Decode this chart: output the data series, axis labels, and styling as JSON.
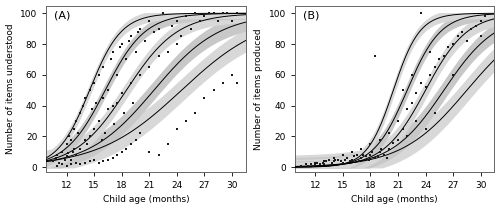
{
  "panel_A": {
    "label": "(A)",
    "ylabel": "Number of items understood",
    "xlabel": "Child age (months)",
    "yticks": [
      0,
      20,
      40,
      60,
      80,
      100
    ],
    "xticks": [
      12,
      15,
      18,
      21,
      24,
      27,
      30
    ],
    "xlim": [
      9.8,
      31.5
    ],
    "ylim": [
      -3,
      105
    ],
    "curve_params": [
      {
        "L": 100,
        "k": 0.22,
        "x0": 24.5
      },
      {
        "L": 100,
        "k": 0.28,
        "x0": 21.5
      },
      {
        "L": 100,
        "k": 0.36,
        "x0": 18.5
      },
      {
        "L": 100,
        "k": 0.46,
        "x0": 16.2
      },
      {
        "L": 100,
        "k": 0.58,
        "x0": 14.5
      }
    ],
    "ci_half": [
      7.0,
      5.5,
      4.5,
      3.5,
      3.0
    ],
    "scatter_x": [
      10.5,
      10.8,
      11.0,
      11.2,
      11.5,
      11.8,
      12.0,
      12.0,
      12.2,
      12.3,
      12.5,
      12.5,
      12.7,
      12.8,
      12.8,
      13.0,
      13.0,
      13.2,
      13.5,
      13.5,
      13.8,
      14.0,
      14.0,
      14.2,
      14.5,
      14.5,
      14.8,
      15.0,
      15.0,
      15.2,
      15.5,
      15.5,
      15.8,
      16.0,
      16.0,
      16.2,
      16.5,
      16.5,
      16.8,
      17.0,
      17.0,
      17.2,
      17.5,
      17.5,
      17.8,
      18.0,
      18.0,
      18.2,
      18.5,
      18.8,
      19.0,
      19.0,
      19.2,
      19.5,
      19.8,
      20.0,
      20.0,
      20.5,
      21.0,
      21.0,
      21.5,
      22.0,
      22.0,
      22.5,
      23.0,
      23.5,
      24.0,
      24.0,
      24.5,
      25.0,
      25.5,
      26.0,
      26.5,
      27.0,
      27.5,
      28.0,
      28.5,
      29.0,
      29.5,
      30.0,
      30.5
    ],
    "scatter_y": [
      4,
      6,
      8,
      3,
      10,
      5,
      7,
      15,
      9,
      20,
      5,
      18,
      10,
      25,
      12,
      8,
      30,
      22,
      35,
      12,
      40,
      18,
      45,
      15,
      20,
      50,
      38,
      25,
      55,
      42,
      30,
      60,
      18,
      45,
      65,
      22,
      50,
      38,
      70,
      40,
      75,
      28,
      60,
      42,
      78,
      48,
      80,
      35,
      70,
      82,
      55,
      85,
      42,
      75,
      88,
      60,
      90,
      82,
      65,
      95,
      88,
      72,
      90,
      100,
      75,
      92,
      80,
      95,
      85,
      98,
      90,
      100,
      95,
      98,
      100,
      100,
      95,
      100,
      100,
      95,
      100
    ],
    "scatter2_x": [
      11.0,
      11.5,
      12.0,
      12.5,
      13.0,
      13.5,
      14.0,
      14.5,
      15.0,
      15.5,
      16.0,
      16.5,
      17.0,
      17.5,
      18.0,
      18.5,
      19.0,
      19.5,
      20.0,
      21.0,
      22.0,
      23.0,
      24.0,
      25.0,
      26.0,
      27.0,
      28.0,
      29.0,
      30.0,
      30.5
    ],
    "scatter2_y": [
      1,
      2,
      1,
      2,
      3,
      2,
      3,
      4,
      5,
      3,
      4,
      5,
      6,
      8,
      10,
      12,
      15,
      18,
      22,
      10,
      8,
      15,
      25,
      30,
      35,
      45,
      50,
      55,
      60,
      55
    ]
  },
  "panel_B": {
    "label": "(B)",
    "ylabel": "Number of items produced",
    "xlabel": "Child age (months)",
    "yticks": [
      0,
      20,
      40,
      60,
      80,
      100
    ],
    "xticks": [
      12,
      15,
      18,
      21,
      24,
      27,
      30
    ],
    "xlim": [
      9.8,
      31.5
    ],
    "ylim": [
      -3,
      105
    ],
    "curve_params": [
      {
        "L": 100,
        "k": 0.28,
        "x0": 28.5
      },
      {
        "L": 100,
        "k": 0.35,
        "x0": 26.0
      },
      {
        "L": 100,
        "k": 0.44,
        "x0": 24.0
      },
      {
        "L": 100,
        "k": 0.55,
        "x0": 22.0
      },
      {
        "L": 100,
        "k": 0.7,
        "x0": 20.5
      }
    ],
    "ci_half": [
      7.0,
      5.5,
      4.5,
      3.5,
      3.0
    ],
    "scatter_x": [
      10.5,
      11.0,
      11.2,
      11.5,
      11.8,
      12.0,
      12.0,
      12.2,
      12.5,
      12.8,
      13.0,
      13.0,
      13.2,
      13.5,
      13.8,
      14.0,
      14.0,
      14.2,
      14.5,
      14.8,
      15.0,
      15.0,
      15.2,
      15.5,
      15.8,
      16.0,
      16.0,
      16.2,
      16.5,
      16.8,
      17.0,
      17.0,
      17.2,
      17.5,
      17.8,
      18.0,
      18.0,
      18.2,
      18.5,
      18.8,
      19.0,
      19.0,
      19.2,
      19.5,
      19.8,
      20.0,
      20.0,
      20.5,
      21.0,
      21.0,
      21.5,
      22.0,
      22.0,
      22.5,
      23.0,
      23.0,
      23.5,
      24.0,
      24.0,
      24.5,
      25.0,
      25.0,
      25.5,
      26.0,
      26.5,
      27.0,
      27.0,
      27.5,
      28.0,
      28.5,
      29.0,
      29.5,
      30.0,
      30.0,
      30.5,
      18.5,
      21.5,
      22.5,
      23.5,
      24.5
    ],
    "scatter_y": [
      1,
      2,
      1,
      2,
      1,
      3,
      2,
      3,
      2,
      3,
      4,
      2,
      4,
      5,
      3,
      6,
      4,
      5,
      5,
      4,
      3,
      8,
      5,
      6,
      4,
      10,
      5,
      7,
      8,
      4,
      12,
      6,
      8,
      7,
      5,
      15,
      8,
      10,
      6,
      7,
      18,
      10,
      12,
      8,
      6,
      22,
      12,
      16,
      30,
      18,
      25,
      38,
      20,
      42,
      48,
      30,
      55,
      52,
      25,
      60,
      65,
      35,
      70,
      72,
      78,
      80,
      60,
      85,
      88,
      82,
      90,
      92,
      95,
      85,
      98,
      72,
      50,
      60,
      100,
      75
    ]
  },
  "curve_color": "#000000",
  "ci_colors": [
    "#d8d8d8",
    "#c8c8c8"
  ],
  "scatter_color": "#1a1a1a",
  "bg_color": "#ffffff",
  "fontsize": 6.5,
  "label_fontsize": 8
}
